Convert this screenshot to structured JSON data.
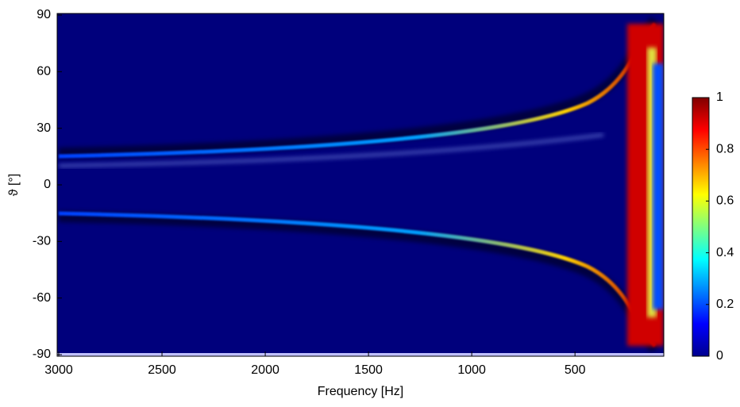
{
  "chart_data": {
    "type": "heatmap",
    "x_label": "Frequency [Hz]",
    "y_label": "ϑ [°]",
    "xlim": [
      3000,
      70
    ],
    "ylim": [
      -90,
      90
    ],
    "xticks": [
      3000,
      2500,
      2000,
      1500,
      1000,
      500
    ],
    "yticks": [
      90,
      60,
      30,
      0,
      -30,
      -60,
      -90
    ],
    "colormap": "jet",
    "clim": [
      0,
      1
    ],
    "cticks": [
      0,
      0.2,
      0.4,
      0.6,
      0.8,
      1
    ]
  }
}
